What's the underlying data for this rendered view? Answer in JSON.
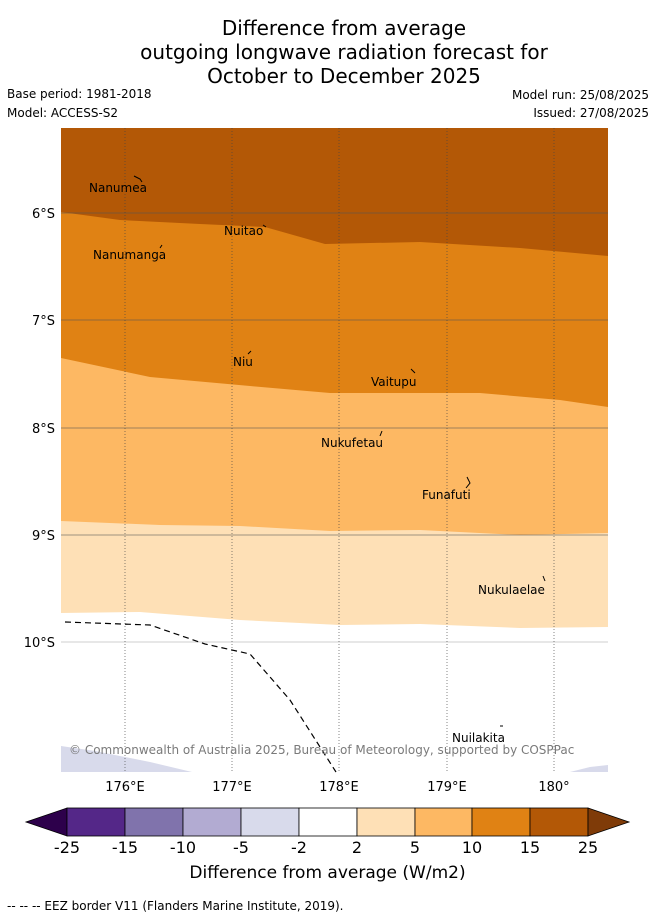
{
  "title": {
    "line1": "Difference from average",
    "line2": "outgoing longwave radiation forecast for",
    "line3": "October to December 2025"
  },
  "meta": {
    "base_period": "Base period: 1981-2018",
    "model": "Model: ACCESS-S2",
    "model_run": "Model run: 25/08/2025",
    "issued": "Issued: 27/08/2025"
  },
  "map": {
    "lat_ticks": [
      "6°S",
      "7°S",
      "8°S",
      "9°S",
      "10°S"
    ],
    "lon_ticks": [
      "176°E",
      "177°E",
      "178°E",
      "179°E",
      "180°"
    ],
    "places": [
      "Nanumea",
      "Nuitao",
      "Nanumanga",
      "Niu",
      "Vaitupu",
      "Nukufetau",
      "Funafuti",
      "Nukulaelae",
      "Nuilakita"
    ],
    "copyright": "© Commonwealth of Australia 2025, Bureau of Meteorology, supported by COSPPac",
    "colors": {
      "band_25": "#b35806",
      "band_15": "#e08214",
      "band_10": "#fdb863",
      "band_5": "#fee0b6",
      "band_2": "#ffffff",
      "band_m5": "#d8daeb",
      "band_m10": "#b2abd2",
      "band_m15": "#8073ac",
      "band_m25": "#542788",
      "extend_low": "#2d004b",
      "extend_high": "#7f3b08"
    }
  },
  "colorbar": {
    "ticks": [
      "-25",
      "-15",
      "-10",
      "-5",
      "-2",
      "2",
      "5",
      "10",
      "15",
      "25"
    ],
    "label": "Difference from average (W/m2)"
  },
  "footnote": "--  --  -- EEZ border V11 (Flanders Marine Institute, 2019)."
}
